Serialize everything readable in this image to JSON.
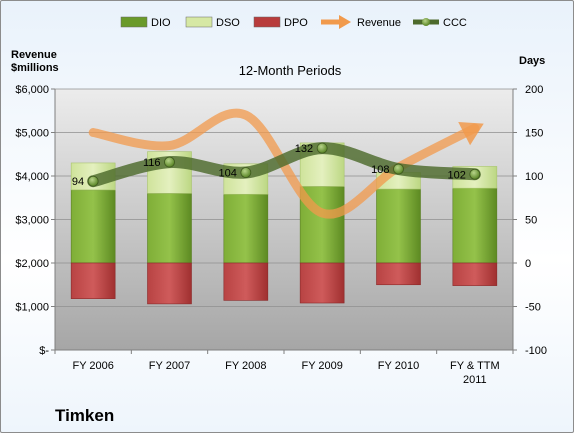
{
  "company": "Timken",
  "chart_data": {
    "type": "bar",
    "title": "12-Month Periods",
    "categories": [
      "FY 2006",
      "FY 2007",
      "FY 2008",
      "FY 2009",
      "FY 2010",
      "FY & TTM 2011"
    ],
    "left_axis": {
      "label_line1": "Revenue",
      "label_line2": "$millions",
      "ylim": [
        0,
        6000
      ],
      "ticks": [
        0,
        1000,
        2000,
        3000,
        4000,
        5000,
        6000
      ],
      "tick_labels": [
        "$-",
        "$1,000",
        "$2,000",
        "$3,000",
        "$4,000",
        "$5,000",
        "$6,000"
      ]
    },
    "right_axis": {
      "label": "Days",
      "ylim": [
        -100,
        200
      ],
      "ticks": [
        -100,
        -50,
        0,
        50,
        100,
        150,
        200
      ],
      "tick_labels": [
        "-100",
        "-50",
        "0",
        "50",
        "100",
        "150",
        "200"
      ]
    },
    "legend": {
      "position": "top",
      "items": [
        {
          "name": "DIO",
          "color": "#6a9a2a",
          "kind": "bar"
        },
        {
          "name": "DSO",
          "color": "#d6e8a4",
          "kind": "bar"
        },
        {
          "name": "DPO",
          "color": "#b83c3c",
          "kind": "bar"
        },
        {
          "name": "Revenue",
          "color": "#f19a4c",
          "kind": "arrow"
        },
        {
          "name": "CCC",
          "color": "#4d6a2c",
          "kind": "line-dot"
        }
      ]
    },
    "series": [
      {
        "name": "DIO",
        "axis": "right",
        "values": [
          84,
          80,
          79,
          88,
          85,
          86
        ]
      },
      {
        "name": "DSO",
        "axis": "right",
        "values": [
          31,
          48,
          35,
          50,
          19,
          25
        ]
      },
      {
        "name": "DPO",
        "axis": "right",
        "values": [
          -41,
          -47,
          -43,
          -46,
          -25,
          -26
        ]
      },
      {
        "name": "Revenue",
        "axis": "left",
        "values": [
          5000,
          4700,
          5400,
          3150,
          4200,
          5100
        ]
      },
      {
        "name": "CCC",
        "axis": "right",
        "values": [
          94,
          116,
          104,
          132,
          108,
          102
        ],
        "labels": [
          "94",
          "116",
          "104",
          "132",
          "108",
          "102"
        ]
      }
    ],
    "category_labels": [
      [
        "FY 2006"
      ],
      [
        "FY 2007"
      ],
      [
        "FY 2008"
      ],
      [
        "FY 2009"
      ],
      [
        "FY 2010"
      ],
      [
        "FY & TTM",
        "2011"
      ]
    ]
  }
}
